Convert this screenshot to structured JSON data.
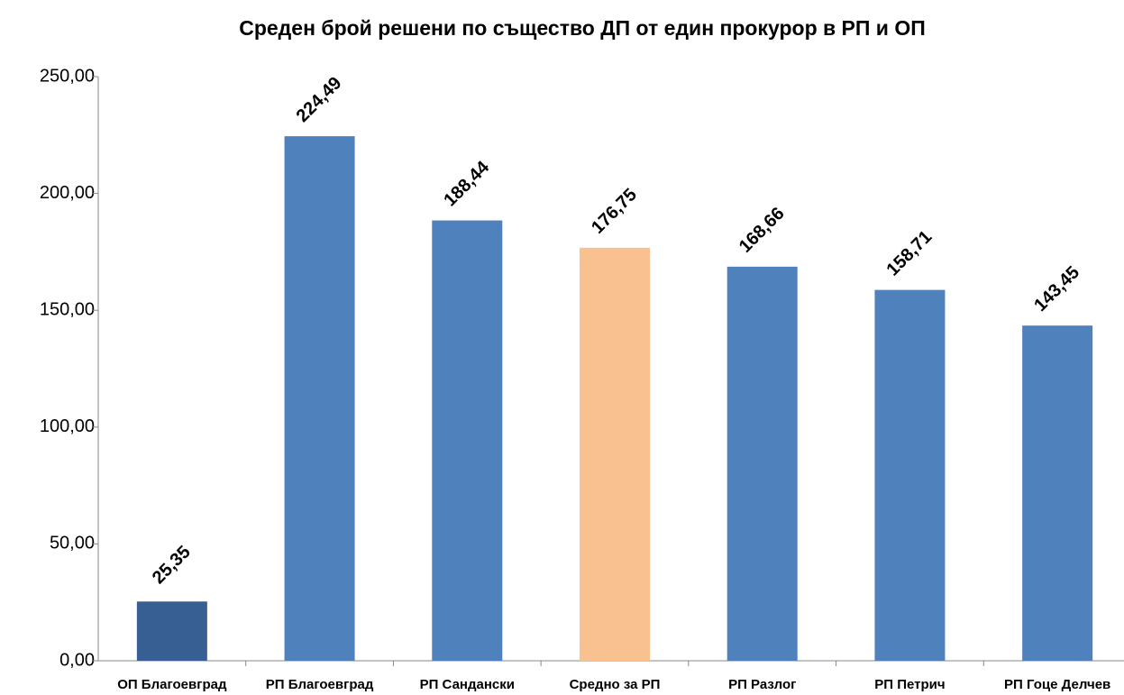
{
  "chart_data": {
    "type": "bar",
    "title": "Среден брой решени по същество ДП от един прокурор в РП и ОП",
    "categories": [
      "ОП Благоевград",
      "РП Благоевград",
      "РП Сандански",
      "Средно за РП",
      "РП Разлог",
      "РП Петрич",
      "РП Гоце Делчев"
    ],
    "values": [
      25.35,
      224.49,
      188.44,
      176.75,
      168.66,
      158.71,
      143.45
    ],
    "value_labels": [
      "25,35",
      "224,49",
      "188,44",
      "176,75",
      "168,66",
      "158,71",
      "143,45"
    ],
    "colors": [
      "#375f93",
      "#4f81bd",
      "#4f81bd",
      "#f9c090",
      "#4f81bd",
      "#4f81bd",
      "#4f81bd"
    ],
    "ylim": [
      0,
      250
    ],
    "yticks": [
      {
        "value": 0,
        "label": "0,00"
      },
      {
        "value": 50,
        "label": "50,00"
      },
      {
        "value": 100,
        "label": "100,00"
      },
      {
        "value": 150,
        "label": "150,00"
      },
      {
        "value": 200,
        "label": "200,00"
      },
      {
        "value": 250,
        "label": "250,00"
      }
    ],
    "grid": false
  }
}
